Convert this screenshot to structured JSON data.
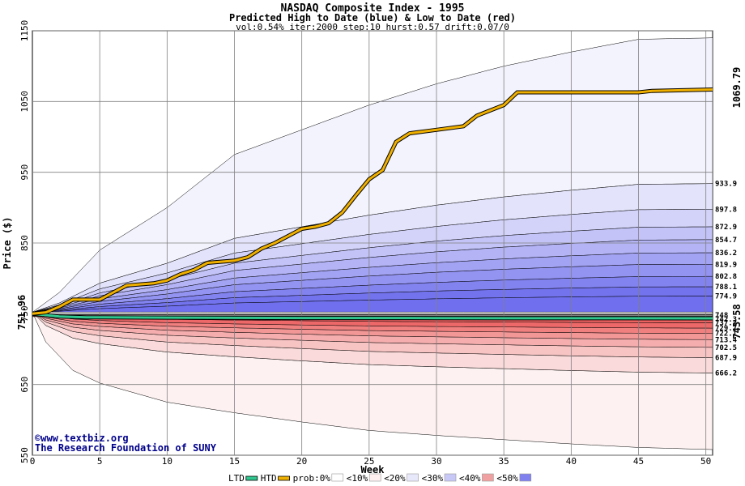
{
  "chart_data": {
    "type": "area",
    "title": "NASDAQ Composite Index - 1995",
    "subtitle": "Predicted High to Date (blue) &  Low to Date (red)",
    "params": "vol:0.54% iter:2000 step:10 hurst:0.57 drift:0.07/0",
    "xlabel": "Week",
    "ylabel": "Price ($)",
    "xlim": [
      0,
      50.5
    ],
    "ylim": [
      550,
      1150
    ],
    "x_ticks": [
      "0",
      "5",
      "10",
      "15",
      "20",
      "25",
      "30",
      "35",
      "40",
      "45",
      "50"
    ],
    "y_ticks": [
      "550",
      "650",
      "750",
      "850",
      "950",
      "1050",
      "1150"
    ],
    "grid": true,
    "start_price": "751.96",
    "start_price_value": 751.96,
    "current_high_label": "1069.79",
    "current_high_value": 1069.79,
    "current_low_label": "743.58",
    "current_low_value": 743.58,
    "high_bands": [
      {
        "label": "933.9",
        "value": 933.9
      },
      {
        "label": "897.8",
        "value": 897.8
      },
      {
        "label": "872.9",
        "value": 872.9
      },
      {
        "label": "854.7",
        "value": 854.7
      },
      {
        "label": "836.2",
        "value": 836.2
      },
      {
        "label": "819.9",
        "value": 819.9
      },
      {
        "label": "802.8",
        "value": 802.8
      },
      {
        "label": "788.1",
        "value": 788.1
      },
      {
        "label": "774.9",
        "value": 774.9
      }
    ],
    "high_envelope": [
      [
        0,
        752
      ],
      [
        2,
        780
      ],
      [
        5,
        840
      ],
      [
        10,
        900
      ],
      [
        15,
        975
      ],
      [
        20,
        1010
      ],
      [
        25,
        1045
      ],
      [
        30,
        1075
      ],
      [
        35,
        1100
      ],
      [
        40,
        1120
      ],
      [
        45,
        1138
      ],
      [
        50.5,
        1140
      ]
    ],
    "low_bands": [
      {
        "label": "737.2",
        "value": 737.2
      },
      {
        "label": "729.7",
        "value": 729.7
      },
      {
        "label": "722.1",
        "value": 722.1
      },
      {
        "label": "713.4",
        "value": 713.4
      },
      {
        "label": "702.5",
        "value": 702.5
      },
      {
        "label": "687.9",
        "value": 687.9
      },
      {
        "label": "666.2",
        "value": 666.2
      }
    ],
    "low_envelope": [
      [
        0,
        752
      ],
      [
        1,
        710
      ],
      [
        3,
        670
      ],
      [
        5,
        652
      ],
      [
        10,
        625
      ],
      [
        15,
        610
      ],
      [
        20,
        597
      ],
      [
        25,
        585
      ],
      [
        30,
        578
      ],
      [
        35,
        572
      ],
      [
        40,
        566
      ],
      [
        45,
        561
      ],
      [
        50.5,
        558
      ]
    ],
    "tight_labels": [
      "748",
      "742.3"
    ],
    "high_to_date": [
      [
        0,
        750
      ],
      [
        1,
        752
      ],
      [
        2,
        760
      ],
      [
        3,
        770
      ],
      [
        5,
        770
      ],
      [
        6,
        780
      ],
      [
        7,
        790
      ],
      [
        9,
        793
      ],
      [
        10,
        797
      ],
      [
        11,
        806
      ],
      [
        12,
        812
      ],
      [
        13,
        822
      ],
      [
        15,
        825
      ],
      [
        16,
        830
      ],
      [
        17,
        842
      ],
      [
        18,
        850
      ],
      [
        19,
        860
      ],
      [
        20,
        870
      ],
      [
        21,
        873
      ],
      [
        22,
        878
      ],
      [
        23,
        893
      ],
      [
        24,
        917
      ],
      [
        25,
        940
      ],
      [
        26,
        953
      ],
      [
        27,
        993
      ],
      [
        28,
        1005
      ],
      [
        30,
        1010
      ],
      [
        32,
        1015
      ],
      [
        33,
        1030
      ],
      [
        35,
        1045
      ],
      [
        36,
        1063
      ],
      [
        40,
        1063
      ],
      [
        45,
        1063
      ],
      [
        46,
        1065
      ],
      [
        50.5,
        1067
      ]
    ],
    "low_to_date": [
      [
        0,
        750
      ],
      [
        2,
        746
      ],
      [
        4,
        745
      ],
      [
        10,
        744.5
      ],
      [
        20,
        744
      ],
      [
        30,
        743.8
      ],
      [
        40,
        743.6
      ],
      [
        50.5,
        743.5
      ]
    ],
    "colors": {
      "high_palest": "#f3f3fd",
      "high_dark": "#7070ee",
      "low_palest": "#fdf1f1",
      "low_dark": "#ec6060",
      "high_line": "#f0b000",
      "low_line": "#30c890",
      "start_label": "#006400",
      "high_label": "#8b8b00",
      "low_label": "#008b45",
      "credit": "#00008b"
    },
    "legend": [
      {
        "label": "LTD",
        "swatch": "line",
        "color": "#30c890"
      },
      {
        "label": "HTD",
        "swatch": "line",
        "color": "#f0b000"
      },
      {
        "label": "prob:0%",
        "swatch": "box",
        "color": "#ffffff"
      },
      {
        "label": "<10%",
        "swatch": "box",
        "color": "#fdeff0"
      },
      {
        "label": "<20%",
        "swatch": "box",
        "color": "#e8e8fb"
      },
      {
        "label": "<30%",
        "swatch": "box",
        "color": "#c8c8f6"
      },
      {
        "label": "<40%",
        "swatch": "box",
        "color": "#f0a0a0"
      },
      {
        "label": "<50%",
        "swatch": "box",
        "color": "#8080ee"
      }
    ],
    "credit_lines": [
      "©www.textbiz.org",
      "The Research Foundation of SUNY"
    ]
  }
}
